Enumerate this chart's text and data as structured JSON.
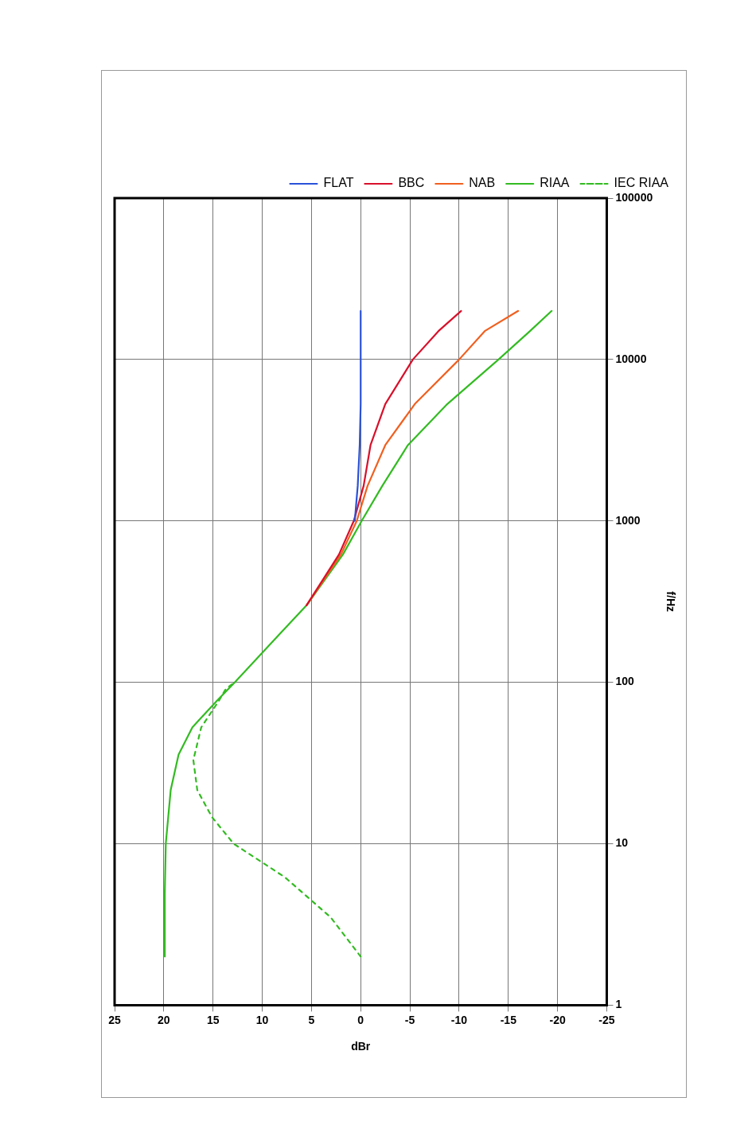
{
  "chart_data": {
    "type": "line",
    "xlabel": "dBr",
    "ylabel": "f/Hz",
    "log": "y",
    "grid": true,
    "legend": "top right",
    "marker": "none",
    "xlim": [
      25,
      -25
    ],
    "xticks": [
      25,
      20,
      15,
      10,
      5,
      0,
      -5,
      -10,
      -15,
      -20,
      -25
    ],
    "ylim": [
      1,
      100000
    ],
    "yticks": [
      1,
      10,
      100,
      1000,
      10000,
      100000
    ],
    "series": [
      {
        "name": "FLAT",
        "color": "#2a52d8",
        "line_style": "solid",
        "x": [
          0.6,
          0.3,
          0.1,
          0,
          0,
          0
        ],
        "values": [
          1000,
          1650,
          2950,
          5300,
          10000,
          20000
        ]
      },
      {
        "name": "BBC",
        "color": "#d8102a",
        "line_style": "solid",
        "x": [
          5.5,
          2.2,
          0.7,
          -0.3,
          -1.0,
          -2.5,
          -5.3,
          -7.9,
          -10.2
        ],
        "values": [
          300,
          620,
          1000,
          1650,
          2950,
          5300,
          10000,
          15000,
          20000
        ]
      },
      {
        "name": "NAB",
        "color": "#f06020",
        "line_style": "solid",
        "x": [
          5.5,
          2.0,
          0.4,
          -0.7,
          -2.5,
          -5.5,
          -10.0,
          -12.6,
          -16.0
        ],
        "values": [
          300,
          620,
          1000,
          1650,
          2950,
          5300,
          10000,
          15000,
          20000
        ]
      },
      {
        "name": "RIAA",
        "color": "#33bb22",
        "line_style": "solid",
        "x": [
          19.9,
          19.9,
          19.8,
          19.3,
          18.5,
          17.1,
          14.6,
          12.8,
          8.2,
          5.5,
          1.8,
          -0.1,
          -2.2,
          -4.8,
          -8.8,
          -14.0,
          -17.2,
          -19.4
        ],
        "values": [
          2,
          5,
          10,
          21.5,
          35.7,
          52.6,
          77,
          100,
          200,
          300,
          620,
          1000,
          1650,
          2950,
          5300,
          10000,
          15000,
          20000
        ]
      },
      {
        "name": "IEC RIAA",
        "color": "#33bb22",
        "line_style": "dashed",
        "x": [
          0,
          3.05,
          7.7,
          12.9,
          15.1,
          16.6,
          17.0,
          16.2,
          14.4,
          13.7,
          12.8
        ],
        "values": [
          2,
          3.5,
          6.2,
          10,
          14.6,
          21.5,
          33,
          52.6,
          77,
          91,
          100
        ]
      }
    ]
  }
}
